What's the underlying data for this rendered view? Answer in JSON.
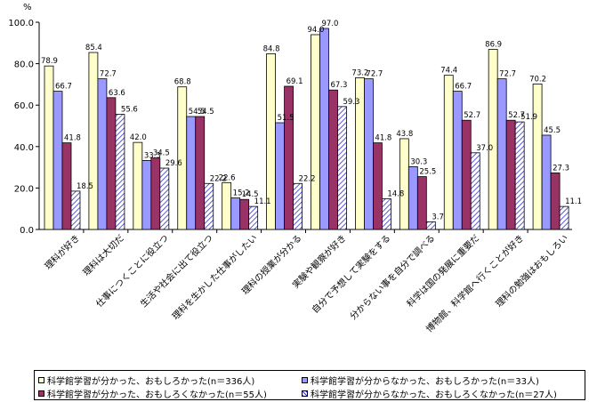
{
  "chart_data": {
    "type": "bar",
    "y_unit": "%",
    "ylim": [
      0,
      100
    ],
    "yticks": [
      "0.0",
      "20.0",
      "40.0",
      "60.0",
      "80.0",
      "100.0"
    ],
    "categories": [
      "理科が好き",
      "理科は大切だ",
      "仕事につくことに役立つ",
      "生活や社会に出て役立つ",
      "理科を生かした仕事がしたい",
      "理科の授業が分かる",
      "実験や観察が好き",
      "自分で予想して実験をする",
      "分からない事を自分で調べる",
      "科学は国の発展に重要だ",
      "博物館、科学館へ行くことが好き",
      "理科の勉強はおもしろい"
    ],
    "series": [
      {
        "name": "科学館学習が分かった、おもしろかった(n＝336人)",
        "color": "#ffffcc",
        "values": [
          78.9,
          85.4,
          42.0,
          68.8,
          22.6,
          84.8,
          94.0,
          73.2,
          43.8,
          74.4,
          86.9,
          70.2
        ]
      },
      {
        "name": "科学館学習が分からなかった、おもしろかった(n＝33人)",
        "color": "#9999ff",
        "values": [
          66.7,
          72.7,
          33.3,
          54.5,
          15.2,
          51.5,
          97.0,
          72.7,
          30.3,
          66.7,
          72.7,
          45.5
        ]
      },
      {
        "name": "科学館学習が分かった、おもしろくなかった(n＝55人)",
        "color": "#993366",
        "values": [
          41.8,
          63.6,
          34.5,
          54.5,
          14.5,
          69.1,
          67.3,
          41.8,
          25.5,
          52.7,
          52.7,
          27.3
        ]
      },
      {
        "name": "科学館学習が分からなかった、おもしろくなかった(n＝27人)",
        "color": "hatch",
        "values": [
          18.5,
          55.6,
          29.6,
          22.2,
          11.1,
          22.2,
          59.3,
          14.8,
          3.7,
          37.0,
          51.9,
          11.1
        ]
      }
    ],
    "data_labels": [
      [
        "78.9",
        "85.4",
        "42.0",
        "68.8",
        "22.6",
        "84.8",
        "94.0",
        "73.2",
        "43.8",
        "74.4",
        "86.9",
        "70.2"
      ],
      [
        "66.7",
        "72.7",
        "33.3",
        "54.5",
        "15.2",
        "51.5",
        "97.0",
        "72.7",
        "30.3",
        "66.7",
        "72.7",
        "45.5"
      ],
      [
        "41.8",
        "63.6",
        "34.5",
        "54.5",
        "14.5",
        "69.1",
        "67.3",
        "41.8",
        "25.5",
        "52.7",
        "52.7",
        "27.3"
      ],
      [
        "18.5",
        "55.6",
        "29.6",
        "22.2",
        "11.1",
        "22.2",
        "59.3",
        "14.8",
        "3.7",
        "37.0",
        "51.9",
        "11.1"
      ]
    ],
    "legend_position": "bottom",
    "grid": false
  }
}
